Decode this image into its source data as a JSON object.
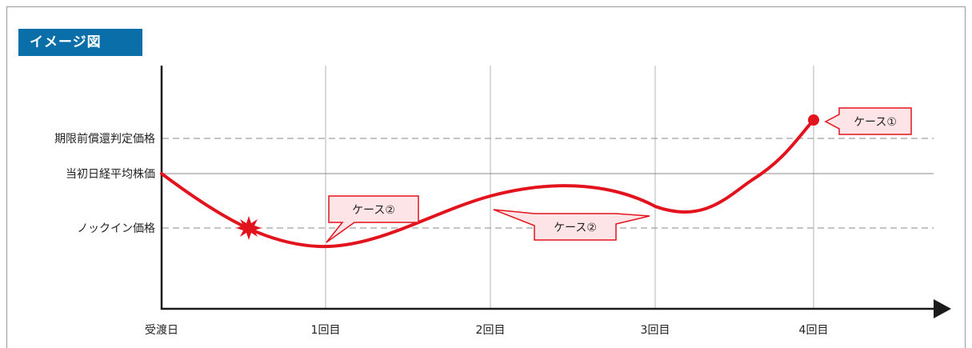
{
  "title": "イメージ図",
  "y_levels": {
    "early_redemption": "期限前償還判定価格",
    "initial_price": "当初日経平均株価",
    "knock_in": "ノックイン価格"
  },
  "x_labels": [
    "受渡日",
    "1回目",
    "2回目",
    "3回目",
    "4回目"
  ],
  "callouts": {
    "case1": "ケース①",
    "case2a": "ケース②",
    "case2b": "ケース②"
  },
  "colors": {
    "accent": "#0a6fa8",
    "curve": "#e3131d",
    "callout_fill": "#fde4e6",
    "callout_border": "#e3131d"
  }
}
